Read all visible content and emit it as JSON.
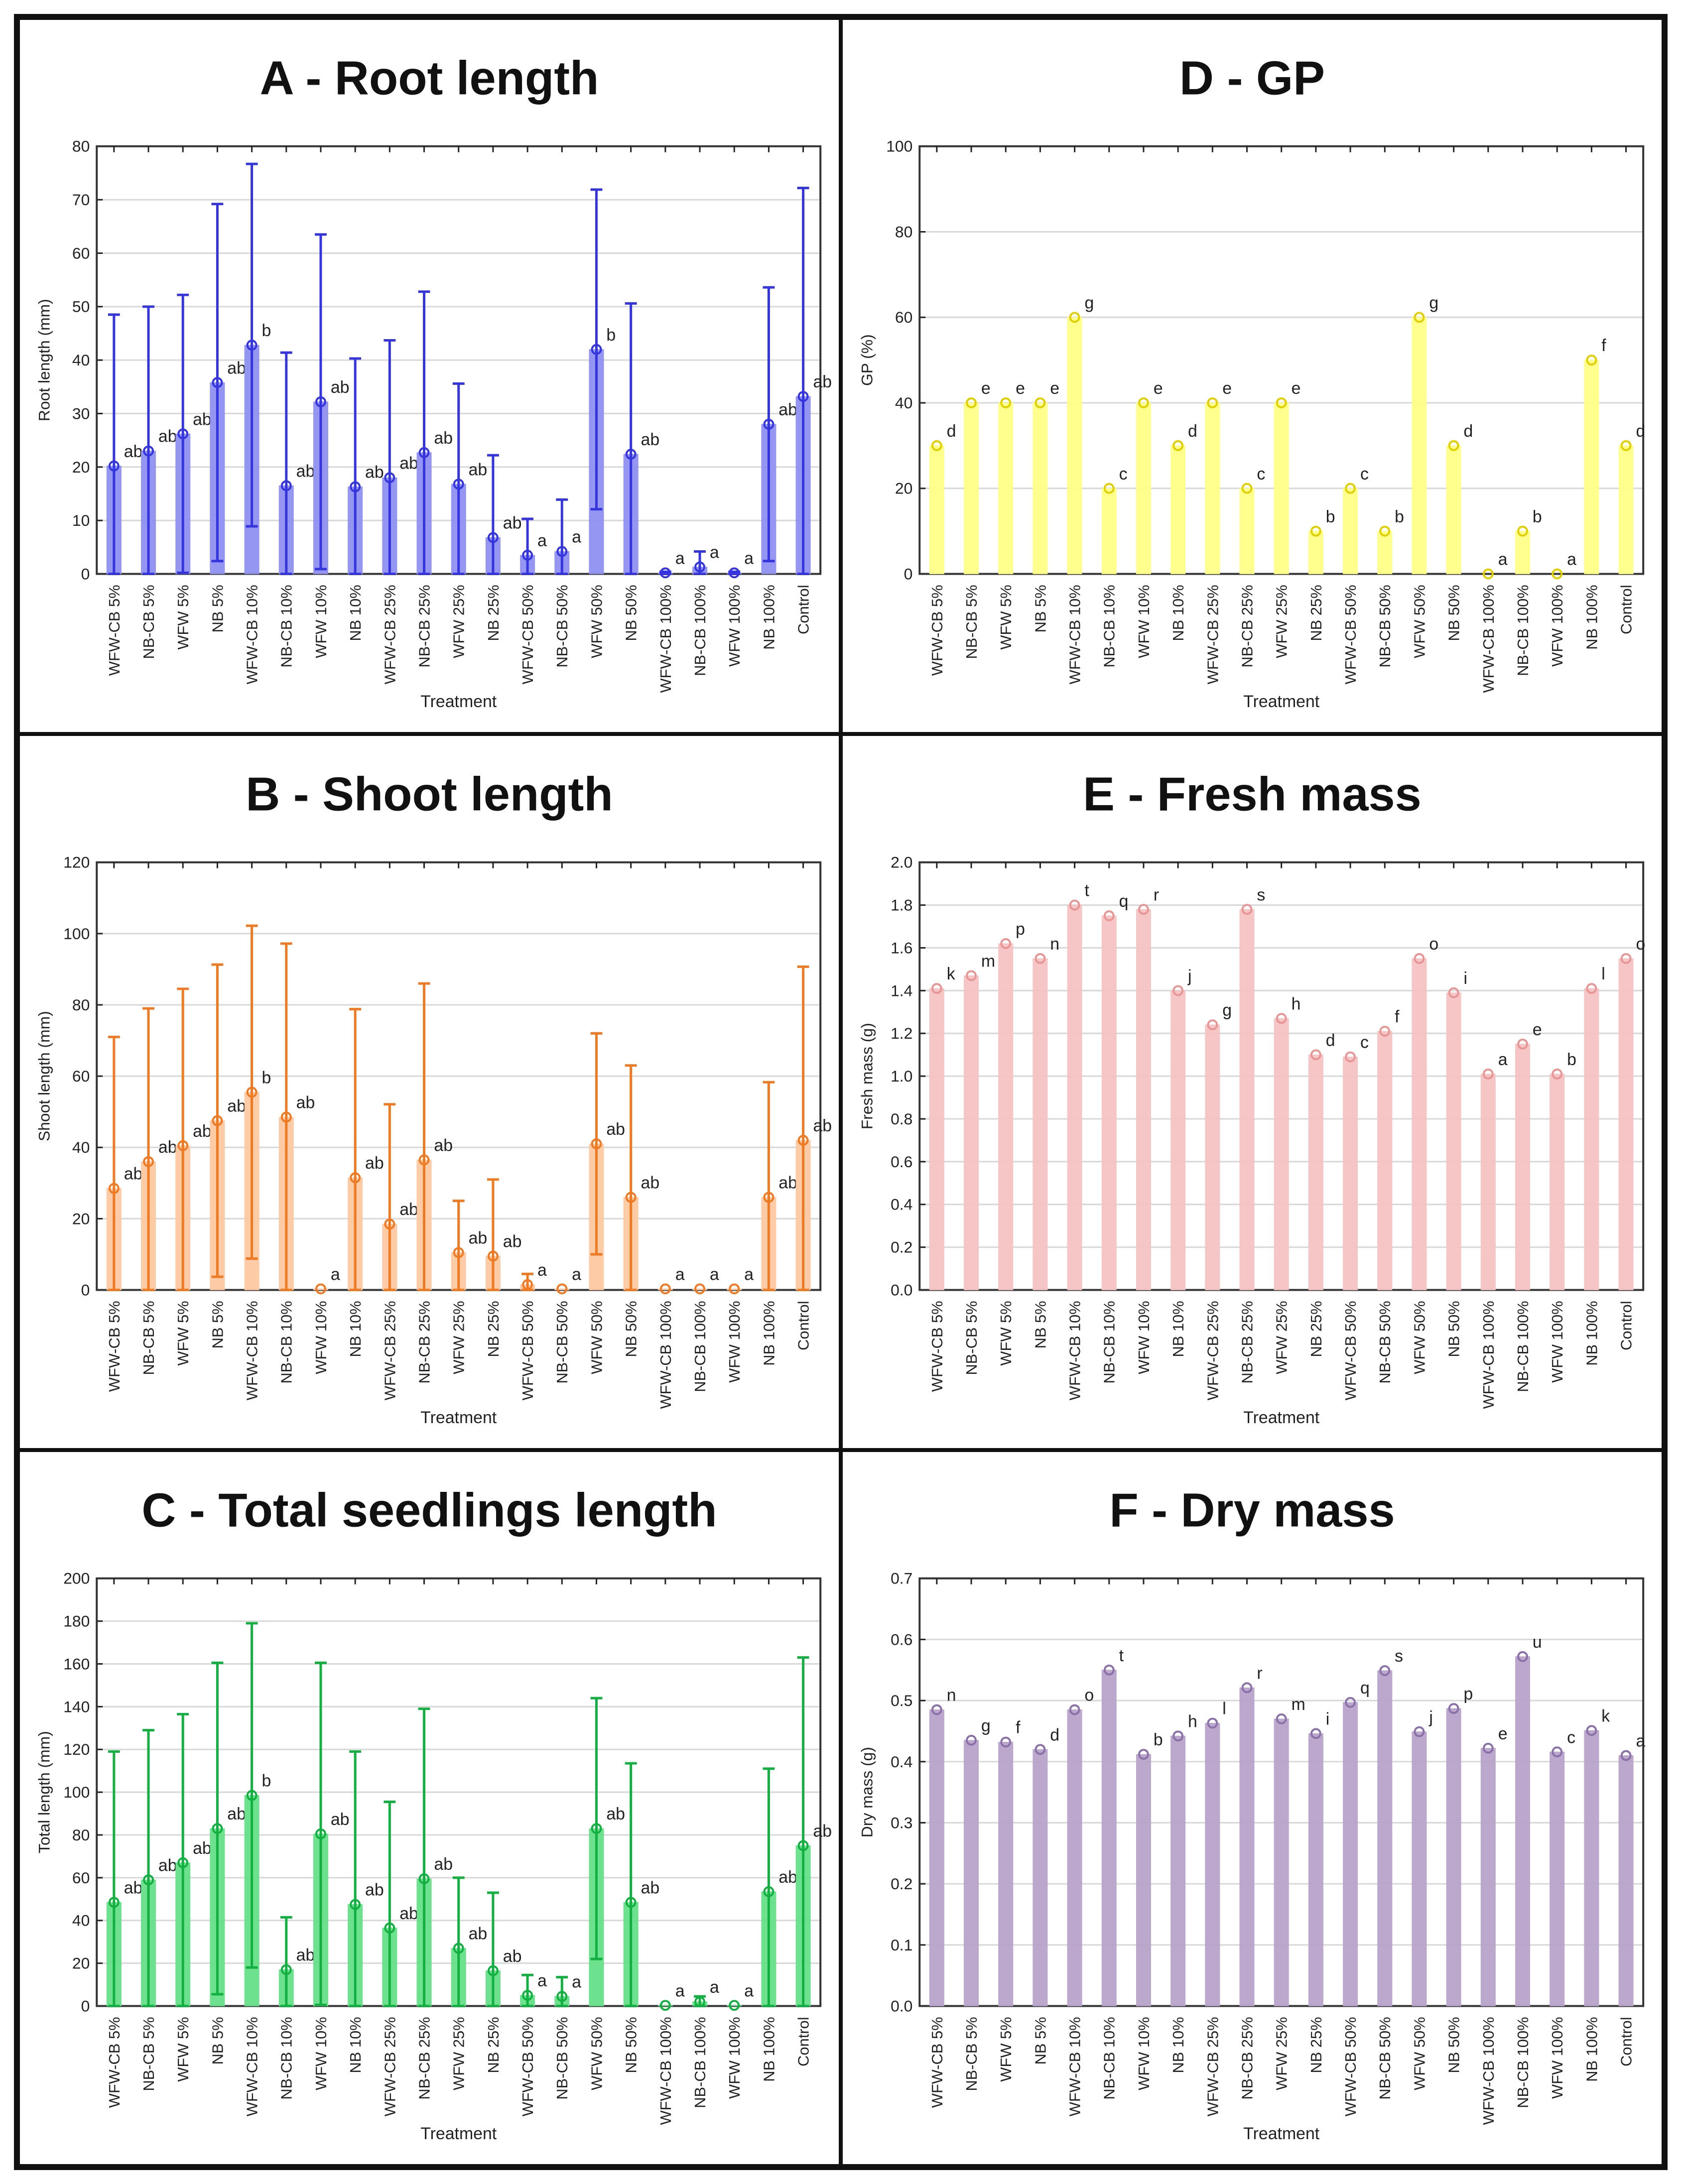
{
  "categories": [
    "WFW-CB 5%",
    "NB-CB 5%",
    "WFW 5%",
    "NB 5%",
    "WFW-CB 10%",
    "NB-CB 10%",
    "WFW 10%",
    "NB 10%",
    "WFW-CB 25%",
    "NB-CB 25%",
    "WFW 25%",
    "NB 25%",
    "WFW-CB 50%",
    "NB-CB 50%",
    "WFW 50%",
    "NB 50%",
    "WFW-CB 100%",
    "NB-CB 100%",
    "WFW 100%",
    "NB 100%",
    "Control"
  ],
  "chart_data": [
    {
      "id": "A",
      "type": "bar",
      "title": "A - Root length",
      "xlabel": "Treatment",
      "ylabel": "Root length (mm)",
      "ylim": [
        0,
        80
      ],
      "ystep": 10,
      "decimals": 0,
      "grid": true,
      "stroke": "#3535e0",
      "fill": "#9090f2",
      "values": [
        20.2,
        23,
        26.2,
        35.8,
        42.8,
        16.5,
        32.2,
        16.3,
        18,
        22.7,
        16.8,
        6.8,
        3.5,
        4.2,
        42,
        22.4,
        0.2,
        1.3,
        0.2,
        28,
        33.2
      ],
      "sd": [
        28.3,
        27,
        26,
        33.4,
        33.9,
        24.9,
        31.3,
        24,
        25.7,
        30.1,
        18.8,
        15.4,
        6.8,
        9.7,
        29.9,
        28.2,
        0.2,
        2.9,
        0.2,
        25.6,
        39
      ],
      "letters": [
        "ab",
        "ab",
        "ab",
        "ab",
        "b",
        "ab",
        "ab",
        "ab",
        "ab",
        "ab",
        "ab",
        "ab",
        "a",
        "a",
        "b",
        "ab",
        "a",
        "a",
        "a",
        "ab",
        "ab"
      ]
    },
    {
      "id": "D",
      "type": "bar",
      "title": "D - GP",
      "xlabel": "Treatment",
      "ylabel": "GP (%)",
      "ylim": [
        0,
        100
      ],
      "ystep": 20,
      "decimals": 0,
      "grid": true,
      "stroke": "#e0d000",
      "fill": "#ffff88",
      "values": [
        30,
        40,
        40,
        40,
        60,
        20,
        40,
        30,
        40,
        20,
        40,
        10,
        20,
        10,
        60,
        30,
        0,
        10,
        0,
        50,
        30
      ],
      "letters": [
        "d",
        "e",
        "e",
        "e",
        "g",
        "c",
        "e",
        "d",
        "e",
        "c",
        "e",
        "b",
        "c",
        "b",
        "g",
        "d",
        "a",
        "b",
        "a",
        "f",
        "d"
      ]
    },
    {
      "id": "B",
      "type": "bar",
      "title": "B - Shoot length",
      "xlabel": "Treatment",
      "ylabel": "Shoot length (mm)",
      "ylim": [
        0,
        120
      ],
      "ystep": 20,
      "decimals": 0,
      "grid": true,
      "stroke": "#f07a22",
      "fill": "#fdc9a2",
      "values": [
        28.5,
        36,
        40.5,
        47.5,
        55.5,
        48.5,
        0.3,
        31.5,
        18.5,
        36.5,
        10.5,
        9.5,
        1.5,
        0.3,
        41,
        26,
        0.3,
        0.3,
        0.3,
        26,
        42
      ],
      "sd": [
        42.5,
        43,
        44,
        43.8,
        46.7,
        48.7,
        0,
        47.3,
        33.6,
        49.5,
        14.5,
        21.5,
        3,
        0,
        31,
        37,
        0,
        0,
        0,
        32.3,
        48.7
      ],
      "letters": [
        "ab",
        "ab",
        "ab",
        "ab",
        "b",
        "ab",
        "a",
        "ab",
        "ab",
        "ab",
        "ab",
        "ab",
        "a",
        "a",
        "ab",
        "ab",
        "a",
        "a",
        "a",
        "ab",
        "ab"
      ]
    },
    {
      "id": "E",
      "type": "bar",
      "title": "E - Fresh mass",
      "xlabel": "Treatment",
      "ylabel": "Fresh mass (g)",
      "ylim": [
        0,
        2.0
      ],
      "ystep": 0.2,
      "decimals": 1,
      "grid": true,
      "stroke": "#e89595",
      "fill": "#f6c3c3",
      "values": [
        1.41,
        1.47,
        1.62,
        1.55,
        1.8,
        1.75,
        1.78,
        1.4,
        1.24,
        1.78,
        1.27,
        1.1,
        1.09,
        1.21,
        1.55,
        1.39,
        1.01,
        1.15,
        1.01,
        1.41,
        1.55
      ],
      "letters": [
        "k",
        "m",
        "p",
        "n",
        "t",
        "q",
        "r",
        "j",
        "g",
        "s",
        "h",
        "d",
        "c",
        "f",
        "o",
        "i",
        "a",
        "e",
        "b",
        "l",
        "o"
      ]
    },
    {
      "id": "C",
      "type": "bar",
      "title": "C - Total seedlings length",
      "xlabel": "Treatment",
      "ylabel": "Total length (mm)",
      "ylim": [
        0,
        200
      ],
      "ystep": 20,
      "decimals": 0,
      "grid": true,
      "stroke": "#12b040",
      "fill": "#66e088",
      "values": [
        48.5,
        59,
        67,
        83,
        98.5,
        17,
        80.5,
        47.5,
        36.5,
        59.5,
        27,
        16.5,
        5,
        4.5,
        83,
        48.5,
        0.3,
        2,
        0.3,
        53.5,
        75
      ],
      "sd": [
        70.5,
        70,
        69.5,
        77.5,
        80.5,
        24.5,
        80,
        71.5,
        59,
        79.5,
        33,
        36.5,
        9.5,
        9,
        61,
        65,
        0,
        2.5,
        0,
        57.5,
        88
      ],
      "letters": [
        "ab",
        "ab",
        "ab",
        "ab",
        "b",
        "ab",
        "ab",
        "ab",
        "ab",
        "ab",
        "ab",
        "ab",
        "a",
        "a",
        "ab",
        "ab",
        "a",
        "a",
        "a",
        "ab",
        "ab"
      ]
    },
    {
      "id": "F",
      "type": "bar",
      "title": "F - Dry mass",
      "xlabel": "Treatment",
      "ylabel": "Dry mass (g)",
      "ylim": [
        0,
        0.7
      ],
      "ystep": 0.1,
      "decimals": 1,
      "grid": true,
      "stroke": "#8a72a8",
      "fill": "#b9a3cb",
      "values": [
        0.485,
        0.435,
        0.432,
        0.42,
        0.485,
        0.55,
        0.412,
        0.442,
        0.463,
        0.521,
        0.47,
        0.446,
        0.497,
        0.549,
        0.449,
        0.487,
        0.422,
        0.572,
        0.416,
        0.451,
        0.41
      ],
      "letters": [
        "n",
        "g",
        "f",
        "d",
        "o",
        "t",
        "b",
        "h",
        "l",
        "r",
        "m",
        "i",
        "q",
        "s",
        "j",
        "p",
        "e",
        "u",
        "c",
        "k",
        "a"
      ]
    }
  ]
}
